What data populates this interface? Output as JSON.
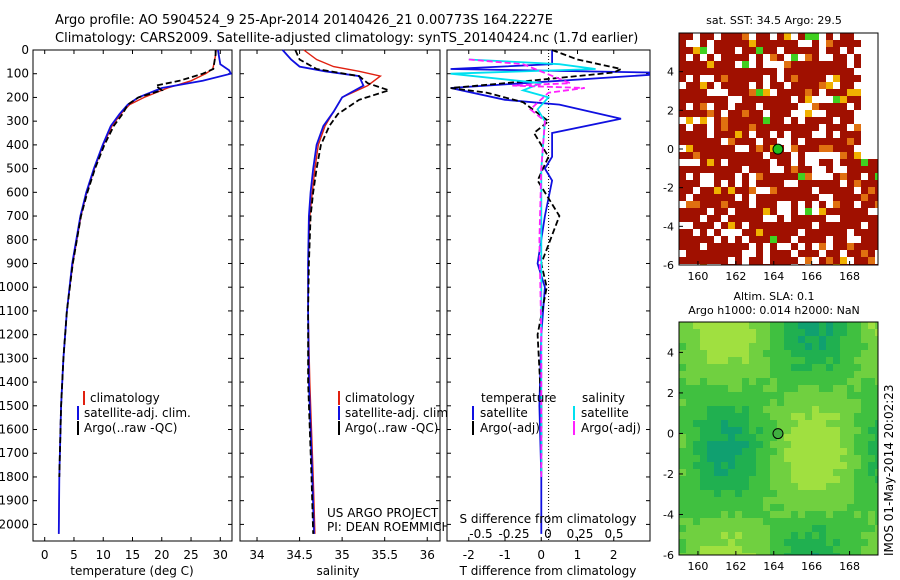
{
  "title": {
    "line1": "Argo profile: AO 5904524_9 25-Apr-2014 20140426_21 0.00773S 164.2227E",
    "line2": "Climatology: CARS2009. Satellite-adjusted climatology: synTS_20140424.nc (1.7d earlier)"
  },
  "side_stamp": "IMOS 01-May-2014 20:02:23",
  "colors": {
    "clim": "#e02010",
    "sat": "#1010e0",
    "argo": "#000000",
    "sat_s": "#00e0f0",
    "argo_s": "#ff20ff",
    "sst": "#a01000"
  },
  "chart_data": [
    {
      "type": "line",
      "id": "temperature",
      "xlabel": "temperature (deg C)",
      "ylabel": "",
      "xlim": [
        -2,
        32
      ],
      "ylim": [
        2070,
        0
      ],
      "xticks": [
        0,
        5,
        10,
        15,
        20,
        25,
        30
      ],
      "yticks": [
        0,
        100,
        200,
        300,
        400,
        500,
        600,
        700,
        800,
        900,
        1000,
        1100,
        1200,
        1300,
        1400,
        1500,
        1600,
        1700,
        1800,
        1900,
        2000
      ],
      "legend": [
        "climatology",
        "satellite-adj. clim.",
        "Argo(..raw -QC)"
      ],
      "series": [
        {
          "name": "climatology",
          "style": "clim",
          "x": [
            29.3,
            29.2,
            29.0,
            28.7,
            27.5,
            25.0,
            21.0,
            17.0,
            14.5,
            13.0,
            11.5,
            10.0,
            8.5,
            7.2,
            6.2,
            5.5,
            4.8,
            3.8,
            3.2,
            2.8,
            2.5,
            2.4
          ],
          "y": [
            0,
            20,
            50,
            80,
            100,
            130,
            160,
            200,
            230,
            270,
            320,
            400,
            500,
            600,
            700,
            800,
            900,
            1100,
            1300,
            1500,
            1800,
            2040
          ]
        },
        {
          "name": "satellite-adj. clim.",
          "style": "sat",
          "x": [
            29.6,
            29.8,
            30.0,
            31.5,
            31.8,
            27.0,
            20.0,
            16.0,
            14.2,
            12.8,
            11.3,
            9.9,
            8.4,
            7.1,
            6.1,
            5.4,
            4.7,
            3.8,
            3.2,
            2.8,
            2.5,
            2.4
          ],
          "y": [
            0,
            30,
            60,
            85,
            100,
            130,
            160,
            200,
            230,
            270,
            320,
            400,
            500,
            600,
            700,
            800,
            900,
            1100,
            1300,
            1500,
            1800,
            2040
          ]
        },
        {
          "name": "Argo(..raw -QC)",
          "style": "argo",
          "x": [
            29.2,
            29.2,
            29.0,
            28.8,
            27.0,
            23.0,
            19.0,
            20.0,
            16.0,
            14.2,
            13.3,
            11.8,
            10.2,
            8.6,
            7.3,
            6.2,
            5.5,
            4.8,
            3.8,
            3.2,
            2.8,
            2.5
          ],
          "y": [
            0,
            20,
            50,
            80,
            100,
            130,
            150,
            170,
            200,
            230,
            270,
            320,
            400,
            500,
            600,
            700,
            800,
            900,
            1100,
            1300,
            1500,
            1800
          ]
        }
      ]
    },
    {
      "type": "line",
      "id": "salinity",
      "xlabel": "salinity",
      "ylabel": "",
      "xlim": [
        33.8,
        36.15
      ],
      "ylim": [
        2070,
        0
      ],
      "xticks": [
        34,
        34.5,
        35,
        35.5,
        36
      ],
      "legend": [
        "climatology",
        "satellite-adj. clim.",
        "Argo(..raw -QC)"
      ],
      "notes": [
        "US ARGO PROJECT",
        "PI: DEAN ROEMMICH"
      ],
      "series": [
        {
          "name": "climatology",
          "style": "clim",
          "x": [
            34.55,
            34.7,
            34.9,
            35.2,
            35.45,
            35.3,
            35.0,
            34.9,
            34.8,
            34.72,
            34.68,
            34.65,
            34.62,
            34.6,
            34.6,
            34.62,
            34.64,
            34.66,
            34.68
          ],
          "y": [
            0,
            40,
            70,
            90,
            110,
            150,
            200,
            260,
            320,
            400,
            500,
            600,
            700,
            900,
            1100,
            1400,
            1600,
            1800,
            2040
          ]
        },
        {
          "name": "satellite-adj. clim.",
          "style": "sat",
          "x": [
            34.3,
            34.4,
            34.5,
            34.8,
            35.2,
            35.25,
            35.0,
            34.9,
            34.78,
            34.7,
            34.66,
            34.63,
            34.61,
            34.6,
            34.6,
            34.61,
            34.63,
            34.65,
            34.67
          ],
          "y": [
            0,
            40,
            70,
            90,
            110,
            150,
            200,
            260,
            320,
            400,
            500,
            600,
            700,
            900,
            1100,
            1400,
            1600,
            1800,
            2040
          ]
        },
        {
          "name": "Argo(..raw -QC)",
          "style": "argo",
          "x": [
            34.45,
            34.5,
            34.7,
            35.2,
            35.3,
            35.55,
            35.2,
            34.95,
            34.85,
            34.75,
            34.7,
            34.66,
            34.63,
            34.61,
            34.6,
            34.6,
            34.62,
            34.64,
            34.66
          ],
          "y": [
            0,
            40,
            80,
            110,
            140,
            170,
            210,
            270,
            320,
            400,
            500,
            600,
            700,
            900,
            1100,
            1400,
            1600,
            1800,
            2040
          ]
        }
      ]
    },
    {
      "type": "line",
      "id": "difference",
      "xlabel": "T difference from climatology",
      "xlabel2": "S difference from climatology",
      "ylabel": "",
      "xlim": [
        -2.6,
        3.0
      ],
      "ylim": [
        2070,
        0
      ],
      "xticks": [
        -2,
        -1,
        0,
        1,
        2
      ],
      "xticks2": [
        "-0.5",
        "-0.25",
        "0",
        "0.25",
        "0.5"
      ],
      "legend_titles": [
        "temperature",
        "salinity"
      ],
      "legend": [
        "satellite",
        "Argo(-adj)",
        "satellite",
        "Argo(-adj)"
      ],
      "series": [
        {
          "name": "satellite",
          "style": "sat",
          "x": [
            0.3,
            0.3,
            -2.5,
            3.0,
            3.0,
            -2.5,
            -1.0,
            0.5,
            2.2,
            0.3,
            0.3,
            0.1,
            0.3,
            0.1,
            -0.1,
            0.1,
            0.0,
            -0.05,
            0.0,
            0.0
          ],
          "y": [
            0,
            60,
            80,
            95,
            105,
            160,
            210,
            230,
            290,
            350,
            450,
            500,
            550,
            700,
            900,
            1000,
            1200,
            1500,
            1800,
            2040
          ]
        },
        {
          "name": "Argo(-adj)",
          "style": "argo",
          "x": [
            0.3,
            1.0,
            2.2,
            2.0,
            -1.0,
            -2.5,
            -1.5,
            -0.5,
            0.2,
            -0.2,
            0.2,
            -0.1,
            0.5,
            0.0,
            0.15,
            -0.1,
            0.0,
            0.0
          ],
          "y": [
            0,
            40,
            80,
            95,
            140,
            160,
            180,
            220,
            300,
            350,
            450,
            550,
            700,
            900,
            1000,
            1200,
            1500,
            1800
          ]
        },
        {
          "name": "satellite",
          "style": "sat_s",
          "x": [
            -2.0,
            0.5,
            1.5,
            -2.5,
            0.0,
            -0.5,
            0.2,
            -0.1,
            0.1,
            0.0,
            0.0,
            0.0,
            0.0
          ],
          "y": [
            40,
            60,
            80,
            100,
            140,
            170,
            200,
            250,
            300,
            500,
            800,
            1200,
            1800
          ]
        },
        {
          "name": "Argo(-adj)",
          "style": "argo_s",
          "x": [
            -2.0,
            -0.5,
            0.8,
            -0.8,
            1.2,
            0.2,
            -0.3,
            0.1,
            0.0,
            -0.05,
            0.0,
            0.0
          ],
          "y": [
            40,
            60,
            140,
            150,
            160,
            180,
            250,
            300,
            500,
            800,
            1200,
            1800
          ]
        }
      ]
    },
    {
      "type": "heatmap",
      "id": "sst-map",
      "title": "sat. SST: 34.5 Argo: 29.5",
      "xlim": [
        159,
        169.5
      ],
      "ylim": [
        -6,
        6
      ],
      "xticks": [
        160,
        162,
        164,
        166,
        168
      ],
      "yticks": [
        -6,
        -4,
        -2,
        0,
        2,
        4
      ],
      "argo_position": [
        164.2227,
        -0.00773
      ]
    },
    {
      "type": "heatmap",
      "id": "sla-map",
      "title": "Altim. SLA: 0.1",
      "subtitle": "Argo h1000: 0.014 h2000: NaN",
      "xlim": [
        159,
        169.5
      ],
      "ylim": [
        -6,
        5.5
      ],
      "xticks": [
        160,
        162,
        164,
        166,
        168
      ],
      "yticks": [
        -6,
        -4,
        -2,
        0,
        2,
        4
      ],
      "argo_position": [
        164.2227,
        -0.00773
      ]
    }
  ]
}
